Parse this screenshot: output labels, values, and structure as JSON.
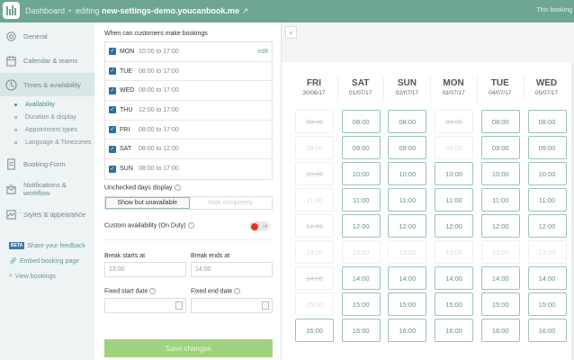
{
  "header": {
    "dashboard": "Dashboard",
    "separator": "•",
    "editing_prefix": "editing",
    "site": "new-settings-demo.youcanbook.me",
    "right_text": "This booking"
  },
  "sidebar": {
    "items": [
      {
        "label": "General",
        "icon": "gear-icon"
      },
      {
        "label": "Calendar & teams",
        "icon": "calendar-icon"
      },
      {
        "label": "Times & availability",
        "icon": "clock-icon",
        "active": true
      },
      {
        "label": "Booking Form",
        "icon": "form-icon"
      },
      {
        "label": "Notifications & workflow",
        "icon": "notification-icon"
      },
      {
        "label": "Styles & appearance",
        "icon": "styles-icon"
      }
    ],
    "subitems": [
      {
        "label": "Availability",
        "active": true
      },
      {
        "label": "Duration & display"
      },
      {
        "label": "Appointment types"
      },
      {
        "label": "Language & Timezones"
      }
    ],
    "beta_badge": "BETA",
    "feedback": "Share your feedback",
    "embed": "Embed booking page",
    "view": "View bookings"
  },
  "settings": {
    "title": "When can customers make bookings",
    "days": [
      {
        "day": "MON",
        "times": "10:00 to 17:00",
        "checked": true
      },
      {
        "day": "TUE",
        "times": "08:00 to 17:00",
        "checked": true
      },
      {
        "day": "WED",
        "times": "08:00 to 17:00",
        "checked": true
      },
      {
        "day": "THU",
        "times": "12:00 to 17:00",
        "checked": true
      },
      {
        "day": "FRI",
        "times": "08:00 to 17:00",
        "checked": true
      },
      {
        "day": "SAT",
        "times": "08:00 to 12:00",
        "checked": true
      },
      {
        "day": "SUN",
        "times": "08:00 to 17:00",
        "checked": true
      }
    ],
    "edit": "edit",
    "unchecked_label": "Unchecked days display",
    "show_unavailable": "Show but unavailable",
    "hide_completely": "Hide completely",
    "custom_label": "Custom availability (On Duty)",
    "toggle_state": "off",
    "break_start_label": "Break starts at",
    "break_start_value": "13:00",
    "break_end_label": "Break ends at",
    "break_end_value": "14:00",
    "fixed_start_label": "Fixed start date",
    "fixed_start_value": "",
    "fixed_end_label": "Fixed end date",
    "fixed_end_value": "",
    "save": "Save changes"
  },
  "preview": {
    "times": [
      "08:00",
      "09:00",
      "10:00",
      "11:00",
      "12:00",
      "13:00",
      "14:00",
      "15:00",
      "16:00"
    ],
    "columns": [
      {
        "day": "FRI",
        "date": "30/06/17",
        "states": [
          "struck",
          "dis",
          "struck",
          "dis",
          "struck",
          "dis",
          "struck",
          "dis",
          "ok"
        ]
      },
      {
        "day": "SAT",
        "date": "01/07/17",
        "states": [
          "ok",
          "ok",
          "ok",
          "ok",
          "ok",
          "dis",
          "ok",
          "ok",
          "ok"
        ]
      },
      {
        "day": "SUN",
        "date": "02/07/17",
        "states": [
          "ok",
          "ok",
          "ok",
          "ok",
          "ok",
          "dis",
          "ok",
          "ok",
          "ok"
        ]
      },
      {
        "day": "MON",
        "date": "03/07/17",
        "states": [
          "struck",
          "dis",
          "ok",
          "ok",
          "ok",
          "dis",
          "ok",
          "ok",
          "ok"
        ]
      },
      {
        "day": "TUE",
        "date": "04/07/17",
        "states": [
          "ok",
          "ok",
          "ok",
          "ok",
          "ok",
          "dis",
          "ok",
          "ok",
          "ok"
        ]
      },
      {
        "day": "WED",
        "date": "05/07/17",
        "states": [
          "ok",
          "ok",
          "ok",
          "ok",
          "ok",
          "dis",
          "ok",
          "ok",
          "ok"
        ]
      }
    ]
  },
  "colors": {
    "header": "#6fa595",
    "save": "#9fd27f",
    "checkbox": "#2b6f9d",
    "toggle_off": "#e8322b"
  }
}
